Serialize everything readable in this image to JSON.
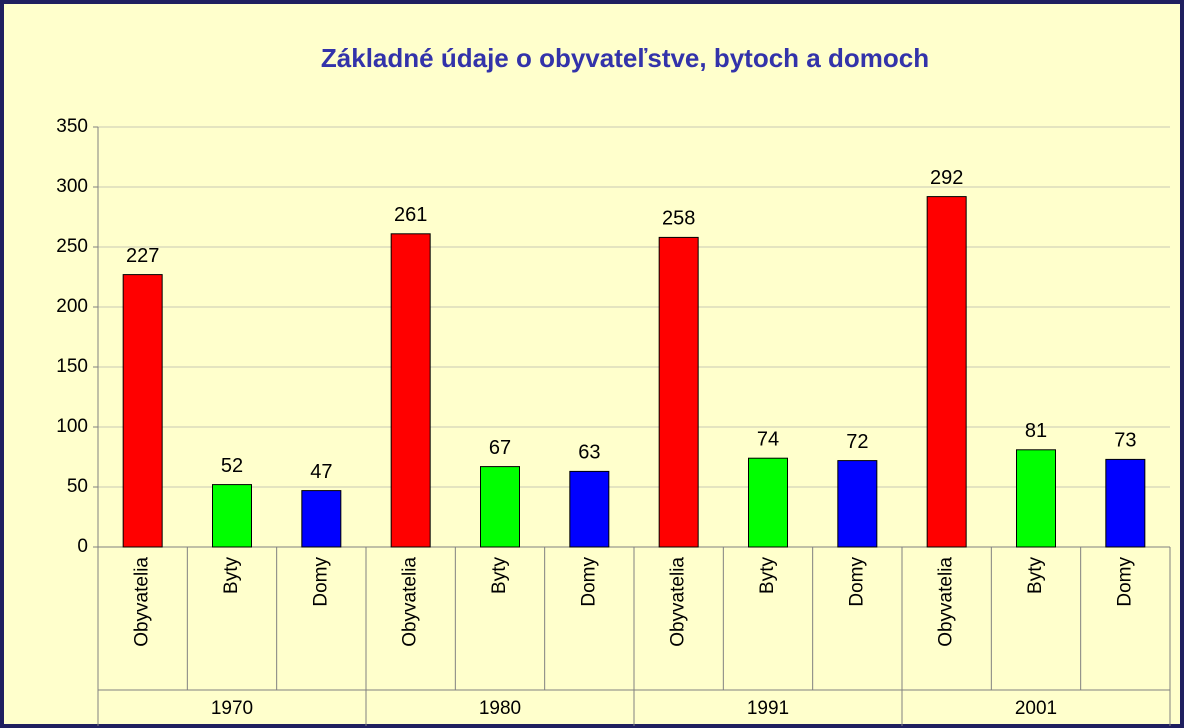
{
  "chart_data": {
    "type": "bar",
    "title": "Základné údaje o obyvateľstve, bytoch a domoch",
    "groups": [
      "1970",
      "1980",
      "1991",
      "2001"
    ],
    "categories": [
      "Obyvatelia",
      "Byty",
      "Domy",
      "Obyvatelia",
      "Byty",
      "Domy",
      "Obyvatelia",
      "Byty",
      "Domy",
      "Obyvatelia",
      "Byty",
      "Domy"
    ],
    "values": [
      227,
      52,
      47,
      261,
      67,
      63,
      258,
      74,
      72,
      292,
      81,
      73
    ],
    "colors": [
      "#ff0000",
      "#00ff00",
      "#0000ff"
    ],
    "ylim": [
      0,
      350
    ],
    "yticks": [
      0,
      50,
      100,
      150,
      200,
      250,
      300,
      350
    ],
    "grid": true
  }
}
